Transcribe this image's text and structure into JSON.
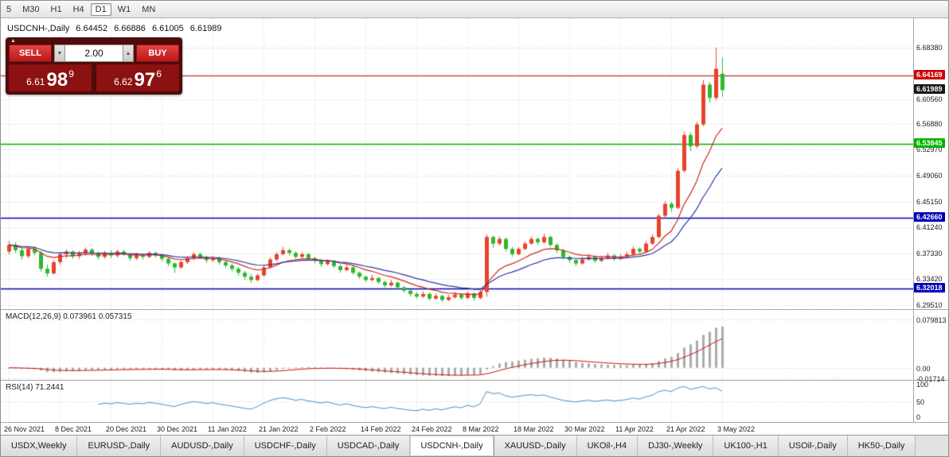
{
  "toolbar": {
    "timeframes": [
      "5",
      "M30",
      "H1",
      "H4",
      "D1",
      "W1",
      "MN"
    ],
    "active": "D1"
  },
  "header": {
    "symbol": "USDCNH-,Daily",
    "open": "6.64452",
    "high": "6.66886",
    "low": "6.61005",
    "close": "6.61989"
  },
  "trade_panel": {
    "sell_label": "SELL",
    "buy_label": "BUY",
    "volume": "2.00",
    "sell_price": {
      "prefix": "6.61",
      "big": "98",
      "sup": "9"
    },
    "buy_price": {
      "prefix": "6.62",
      "big": "97",
      "sup": "6"
    }
  },
  "chart_data": {
    "type": "candlestick",
    "symbol": "USDCNH-",
    "timeframe": "Daily",
    "price_axis": {
      "min": 6.289,
      "max": 6.7282,
      "tick_values": [
        6.6838,
        6.6447,
        6.6056,
        6.5688,
        6.5297,
        6.4906,
        6.4515,
        6.4124,
        6.3733,
        6.3342,
        6.2951
      ],
      "tick_labels": [
        "6.68380",
        "6.64470",
        "6.60560",
        "6.56880",
        "6.52970",
        "6.49060",
        "6.45150",
        "6.41240",
        "6.37330",
        "6.33420",
        "6.29510"
      ]
    },
    "last_price": {
      "value": 6.61989,
      "label": "6.61989"
    },
    "hlines": [
      {
        "value": 6.64169,
        "label": "6.64169",
        "color": "#cc0000"
      },
      {
        "value": 6.53845,
        "label": "6.53845",
        "color": "#00b300"
      },
      {
        "value": 6.4266,
        "label": "6.42660",
        "color": "#0000b3"
      },
      {
        "value": 6.32018,
        "label": "6.32018",
        "color": "#0000b3"
      }
    ],
    "moving_averages": [
      {
        "period": 10,
        "color": "#c92a1e"
      },
      {
        "period": 20,
        "color": "#2b3aa5"
      }
    ],
    "date_ticks": [
      {
        "i": 0,
        "label": "26 Nov 2021"
      },
      {
        "i": 8,
        "label": "8 Dec 2021"
      },
      {
        "i": 16,
        "label": "20 Dec 2021"
      },
      {
        "i": 24,
        "label": "30 Dec 2021"
      },
      {
        "i": 32,
        "label": "11 Jan 2022"
      },
      {
        "i": 40,
        "label": "21 Jan 2022"
      },
      {
        "i": 48,
        "label": "2 Feb 2022"
      },
      {
        "i": 56,
        "label": "14 Feb 2022"
      },
      {
        "i": 64,
        "label": "24 Feb 2022"
      },
      {
        "i": 72,
        "label": "8 Mar 2022"
      },
      {
        "i": 80,
        "label": "18 Mar 2022"
      },
      {
        "i": 88,
        "label": "30 Mar 2022"
      },
      {
        "i": 96,
        "label": "11 Apr 2022"
      },
      {
        "i": 104,
        "label": "21 Apr 2022"
      },
      {
        "i": 112,
        "label": "3 May 2022"
      }
    ],
    "candles": [
      [
        6.376,
        6.392,
        6.372,
        6.386
      ],
      [
        6.386,
        6.39,
        6.374,
        6.378
      ],
      [
        6.378,
        6.382,
        6.364,
        6.369
      ],
      [
        6.369,
        6.383,
        6.366,
        6.38
      ],
      [
        6.38,
        6.384,
        6.37,
        6.374
      ],
      [
        6.374,
        6.377,
        6.346,
        6.35
      ],
      [
        6.35,
        6.356,
        6.338,
        6.343
      ],
      [
        6.343,
        6.363,
        6.341,
        6.36
      ],
      [
        6.36,
        6.375,
        6.356,
        6.372
      ],
      [
        6.372,
        6.379,
        6.366,
        6.376
      ],
      [
        6.376,
        6.378,
        6.365,
        6.369
      ],
      [
        6.369,
        6.377,
        6.365,
        6.374
      ],
      [
        6.374,
        6.382,
        6.37,
        6.379
      ],
      [
        6.379,
        6.381,
        6.369,
        6.373
      ],
      [
        6.373,
        6.376,
        6.364,
        6.368
      ],
      [
        6.368,
        6.377,
        6.365,
        6.374
      ],
      [
        6.374,
        6.378,
        6.366,
        6.37
      ],
      [
        6.37,
        6.379,
        6.367,
        6.376
      ],
      [
        6.376,
        6.3785,
        6.369,
        6.372
      ],
      [
        6.372,
        6.374,
        6.362,
        6.366
      ],
      [
        6.366,
        6.374,
        6.363,
        6.371
      ],
      [
        6.371,
        6.373,
        6.364,
        6.368
      ],
      [
        6.368,
        6.3765,
        6.366,
        6.374
      ],
      [
        6.374,
        6.376,
        6.367,
        6.37
      ],
      [
        6.37,
        6.372,
        6.361,
        6.365
      ],
      [
        6.365,
        6.367,
        6.354,
        6.358
      ],
      [
        6.358,
        6.36,
        6.344,
        6.352
      ],
      [
        6.352,
        6.363,
        6.35,
        6.36
      ],
      [
        6.36,
        6.369,
        6.357,
        6.366
      ],
      [
        6.366,
        6.375,
        6.363,
        6.372
      ],
      [
        6.372,
        6.3745,
        6.365,
        6.368
      ],
      [
        6.368,
        6.37,
        6.359,
        6.363
      ],
      [
        6.363,
        6.369,
        6.36,
        6.366
      ],
      [
        6.366,
        6.368,
        6.356,
        6.36
      ],
      [
        6.36,
        6.363,
        6.351,
        6.355
      ],
      [
        6.355,
        6.358,
        6.346,
        6.35
      ],
      [
        6.35,
        6.353,
        6.34,
        6.344
      ],
      [
        6.344,
        6.347,
        6.333,
        6.338
      ],
      [
        6.338,
        6.342,
        6.329,
        6.333
      ],
      [
        6.333,
        6.343,
        6.331,
        6.34
      ],
      [
        6.34,
        6.355,
        6.338,
        6.352
      ],
      [
        6.352,
        6.367,
        6.35,
        6.364
      ],
      [
        6.364,
        6.375,
        6.361,
        6.372
      ],
      [
        6.372,
        6.383,
        6.37,
        6.378
      ],
      [
        6.378,
        6.38,
        6.37,
        6.374
      ],
      [
        6.374,
        6.376,
        6.364,
        6.368
      ],
      [
        6.368,
        6.375,
        6.365,
        6.372
      ],
      [
        6.372,
        6.374,
        6.362,
        6.366
      ],
      [
        6.366,
        6.368,
        6.358,
        6.362
      ],
      [
        6.362,
        6.365,
        6.353,
        6.357
      ],
      [
        6.357,
        6.364,
        6.355,
        6.361
      ],
      [
        6.361,
        6.363,
        6.351,
        6.354
      ],
      [
        6.354,
        6.356,
        6.344,
        6.348
      ],
      [
        6.348,
        6.356,
        6.346,
        6.352
      ],
      [
        6.352,
        6.354,
        6.341,
        6.344
      ],
      [
        6.344,
        6.346,
        6.335,
        6.338
      ],
      [
        6.338,
        6.34,
        6.33,
        6.333
      ],
      [
        6.333,
        6.341,
        6.331,
        6.336
      ],
      [
        6.336,
        6.338,
        6.327,
        6.33
      ],
      [
        6.33,
        6.332,
        6.322,
        6.325
      ],
      [
        6.325,
        6.333,
        6.323,
        6.329
      ],
      [
        6.329,
        6.331,
        6.319,
        6.322
      ],
      [
        6.322,
        6.324,
        6.314,
        6.317
      ],
      [
        6.317,
        6.319,
        6.308,
        6.312
      ],
      [
        6.312,
        6.315,
        6.305,
        6.308
      ],
      [
        6.308,
        6.316,
        6.306,
        6.312
      ],
      [
        6.312,
        6.314,
        6.302,
        6.305
      ],
      [
        6.305,
        6.313,
        6.303,
        6.309
      ],
      [
        6.309,
        6.311,
        6.3,
        6.303
      ],
      [
        6.303,
        6.311,
        6.301,
        6.307
      ],
      [
        6.307,
        6.315,
        6.305,
        6.311
      ],
      [
        6.311,
        6.313,
        6.303,
        6.306
      ],
      [
        6.306,
        6.316,
        6.304,
        6.313
      ],
      [
        6.313,
        6.315,
        6.302,
        6.306
      ],
      [
        6.306,
        6.318,
        6.304,
        6.315
      ],
      [
        6.315,
        6.402,
        6.308,
        6.398
      ],
      [
        6.398,
        6.4,
        6.382,
        6.388
      ],
      [
        6.388,
        6.399,
        6.385,
        6.395
      ],
      [
        6.395,
        6.397,
        6.376,
        6.38
      ],
      [
        6.38,
        6.383,
        6.368,
        6.372
      ],
      [
        6.372,
        6.383,
        6.37,
        6.38
      ],
      [
        6.38,
        6.391,
        6.378,
        6.388
      ],
      [
        6.388,
        6.399,
        6.386,
        6.395
      ],
      [
        6.395,
        6.397,
        6.386,
        6.39
      ],
      [
        6.39,
        6.403,
        6.388,
        6.398
      ],
      [
        6.398,
        6.4,
        6.383,
        6.386
      ],
      [
        6.386,
        6.389,
        6.374,
        6.378
      ],
      [
        6.378,
        6.38,
        6.364,
        6.368
      ],
      [
        6.368,
        6.37,
        6.359,
        6.363
      ],
      [
        6.363,
        6.366,
        6.354,
        6.358
      ],
      [
        6.358,
        6.368,
        6.356,
        6.364
      ],
      [
        6.364,
        6.372,
        6.362,
        6.368
      ],
      [
        6.368,
        6.37,
        6.359,
        6.362
      ],
      [
        6.362,
        6.37,
        6.36,
        6.366
      ],
      [
        6.366,
        6.374,
        6.364,
        6.37
      ],
      [
        6.37,
        6.372,
        6.362,
        6.365
      ],
      [
        6.365,
        6.372,
        6.363,
        6.368
      ],
      [
        6.368,
        6.376,
        6.366,
        6.372
      ],
      [
        6.372,
        6.384,
        6.37,
        6.38
      ],
      [
        6.38,
        6.382,
        6.372,
        6.376
      ],
      [
        6.376,
        6.392,
        6.374,
        6.388
      ],
      [
        6.388,
        6.402,
        6.386,
        6.398
      ],
      [
        6.398,
        6.433,
        6.396,
        6.43
      ],
      [
        6.43,
        6.452,
        6.426,
        6.448
      ],
      [
        6.448,
        6.451,
        6.436,
        6.442
      ],
      [
        6.442,
        6.502,
        6.44,
        6.498
      ],
      [
        6.498,
        6.557,
        6.495,
        6.552
      ],
      [
        6.552,
        6.556,
        6.528,
        6.535
      ],
      [
        6.535,
        6.572,
        6.532,
        6.568
      ],
      [
        6.568,
        6.635,
        6.565,
        6.628
      ],
      [
        6.628,
        6.632,
        6.601,
        6.608
      ],
      [
        6.608,
        6.6838,
        6.605,
        6.652
      ],
      [
        6.64452,
        6.66886,
        6.61005,
        6.61989
      ]
    ],
    "indicators": [
      {
        "name": "MACD",
        "label": "MACD(12,26,9) 0.073961 0.057315",
        "fast": 12,
        "slow": 26,
        "signal": 9,
        "range": [
          -0.02,
          0.095
        ],
        "tick_values": [
          0.079813,
          0,
          -0.01714
        ],
        "tick_labels": [
          "0.079813",
          "0.00",
          "-0.01714"
        ],
        "hist_color": "#ababab",
        "signal_color": "#cc1111"
      },
      {
        "name": "RSI",
        "label": "RSI(14) 71.2441",
        "period": 14,
        "range": [
          0,
          100
        ],
        "tick_values": [
          100,
          50,
          0
        ],
        "tick_labels": [
          "100",
          "50",
          "0"
        ],
        "color": "#4a90c4"
      }
    ],
    "colors": {
      "up": "#e8432b",
      "down": "#2db82d",
      "grid": "#d0d0d0"
    }
  },
  "tabs": [
    {
      "label": "USDX,Weekly"
    },
    {
      "label": "EURUSD-,Daily"
    },
    {
      "label": "AUDUSD-,Daily"
    },
    {
      "label": "USDCHF-,Daily"
    },
    {
      "label": "USDCAD-,Daily"
    },
    {
      "label": "USDCNH-,Daily",
      "active": true
    },
    {
      "label": "XAUUSD-,Daily"
    },
    {
      "label": "UKOil-,H4"
    },
    {
      "label": "DJ30-,Weekly"
    },
    {
      "label": "UK100-,H1"
    },
    {
      "label": "USOil-,Daily"
    },
    {
      "label": "HK50-,Daily"
    }
  ]
}
